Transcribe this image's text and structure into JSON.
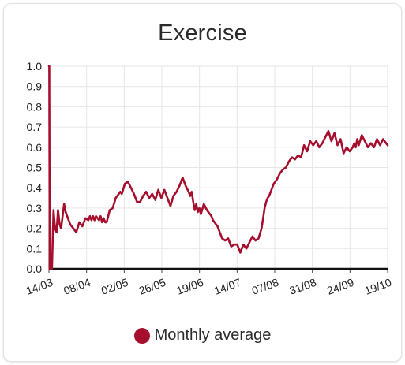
{
  "chart_data": {
    "type": "line",
    "title": "Exercise",
    "xlabel": "",
    "ylabel": "",
    "ylim": [
      0,
      1.0
    ],
    "y_ticks": [
      "0.0",
      "0.1",
      "0.2",
      "0.3",
      "0.4",
      "0.5",
      "0.6",
      "0.7",
      "0.8",
      "0.9",
      "1.0"
    ],
    "x_ticks": [
      "14/03",
      "08/04",
      "02/05",
      "26/05",
      "19/06",
      "14/07",
      "07/08",
      "31/08",
      "24/09",
      "19/10"
    ],
    "x_range_days": [
      0,
      223
    ],
    "grid": true,
    "legend_position": "bottom",
    "series": [
      {
        "name": "Monthly average",
        "color": "#a50f2d",
        "x": [
          0,
          0.2,
          0.5,
          0.8,
          1,
          1.6,
          2,
          3,
          4,
          5,
          6,
          7,
          8,
          9,
          10,
          11,
          12,
          13,
          14,
          16,
          18,
          20,
          22,
          24,
          26,
          27,
          28,
          29,
          30,
          31,
          33,
          34,
          35,
          36,
          37,
          38,
          40,
          42,
          44,
          45,
          46,
          47,
          48,
          50,
          52,
          54,
          56,
          58,
          60,
          62,
          64,
          66,
          68,
          70,
          72,
          74,
          76,
          78,
          80,
          82,
          84,
          86,
          88,
          90,
          92,
          93,
          94,
          95,
          96,
          97,
          98,
          99,
          100,
          102,
          104,
          106,
          107,
          108,
          109,
          110,
          111,
          112,
          114,
          116,
          118,
          120,
          122,
          124,
          126,
          128,
          130,
          132,
          134,
          136,
          138,
          140,
          141,
          142,
          143,
          144,
          145,
          146,
          148,
          150,
          152,
          154,
          156,
          158,
          160,
          162,
          164,
          166,
          168,
          170,
          172,
          174,
          176,
          178,
          180,
          182,
          184,
          186,
          188,
          190,
          192,
          194,
          196,
          198,
          200,
          201,
          202,
          203,
          204,
          206,
          208,
          210,
          212,
          214,
          216,
          218,
          220,
          222,
          223
        ],
        "values": [
          1.0,
          1.0,
          0.0,
          0.0,
          0.0,
          0.0,
          0.0,
          0.29,
          0.2,
          0.18,
          0.29,
          0.22,
          0.2,
          0.26,
          0.32,
          0.28,
          0.26,
          0.24,
          0.22,
          0.2,
          0.18,
          0.23,
          0.21,
          0.25,
          0.24,
          0.26,
          0.24,
          0.26,
          0.24,
          0.26,
          0.24,
          0.26,
          0.23,
          0.25,
          0.23,
          0.23,
          0.29,
          0.3,
          0.35,
          0.36,
          0.37,
          0.38,
          0.37,
          0.42,
          0.43,
          0.4,
          0.37,
          0.33,
          0.33,
          0.36,
          0.38,
          0.35,
          0.37,
          0.34,
          0.39,
          0.35,
          0.39,
          0.35,
          0.31,
          0.36,
          0.38,
          0.41,
          0.45,
          0.41,
          0.38,
          0.36,
          0.38,
          0.33,
          0.29,
          0.32,
          0.28,
          0.3,
          0.27,
          0.32,
          0.29,
          0.27,
          0.26,
          0.24,
          0.23,
          0.22,
          0.21,
          0.19,
          0.15,
          0.14,
          0.15,
          0.11,
          0.12,
          0.12,
          0.08,
          0.12,
          0.1,
          0.13,
          0.16,
          0.14,
          0.15,
          0.2,
          0.25,
          0.3,
          0.33,
          0.35,
          0.36,
          0.38,
          0.42,
          0.44,
          0.47,
          0.49,
          0.5,
          0.53,
          0.55,
          0.54,
          0.56,
          0.55,
          0.61,
          0.58,
          0.63,
          0.61,
          0.63,
          0.6,
          0.62,
          0.65,
          0.68,
          0.63,
          0.67,
          0.61,
          0.64,
          0.57,
          0.6,
          0.58,
          0.6,
          0.62,
          0.6,
          0.64,
          0.61,
          0.66,
          0.63,
          0.6,
          0.62,
          0.6,
          0.64,
          0.61,
          0.64,
          0.62,
          0.61
        ]
      }
    ]
  }
}
